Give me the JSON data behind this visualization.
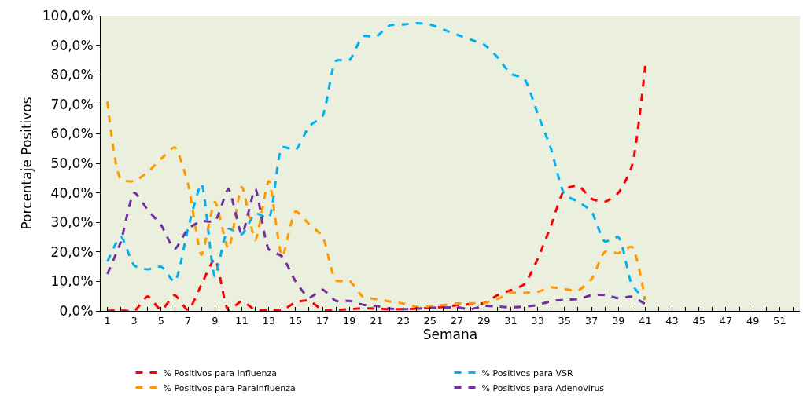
{
  "chart_data": {
    "type": "line",
    "xlabel": "Semana",
    "ylabel": "Porcentaje Positivos",
    "line_style": "dashed",
    "marker": "none",
    "grid": false,
    "legend": "bottom",
    "x": [
      1,
      2,
      3,
      4,
      5,
      6,
      7,
      8,
      9,
      10,
      11,
      12,
      13,
      14,
      15,
      16,
      17,
      18,
      19,
      20,
      21,
      22,
      23,
      24,
      25,
      26,
      27,
      28,
      29,
      30,
      31,
      32,
      33,
      34,
      35,
      36,
      37,
      38,
      39,
      40,
      41
    ],
    "xlim": [
      0.5,
      52.5
    ],
    "xticks": [
      1,
      {
        "value": 2,
        "label": null
      },
      3,
      {
        "value": 4,
        "label": null
      },
      5,
      {
        "value": 6,
        "label": null
      },
      7,
      {
        "value": 8,
        "label": null
      },
      9,
      {
        "value": 10,
        "label": null
      },
      11,
      {
        "value": 12,
        "label": null
      },
      13,
      {
        "value": 14,
        "label": null
      },
      15,
      {
        "value": 16,
        "label": null
      },
      17,
      {
        "value": 18,
        "label": null
      },
      19,
      {
        "value": 20,
        "label": null
      },
      21,
      {
        "value": 22,
        "label": null
      },
      23,
      {
        "value": 24,
        "label": null
      },
      25,
      {
        "value": 26,
        "label": null
      },
      27,
      {
        "value": 28,
        "label": null
      },
      29,
      {
        "value": 30,
        "label": null
      },
      31,
      {
        "value": 32,
        "label": null
      },
      33,
      {
        "value": 34,
        "label": null
      },
      35,
      {
        "value": 36,
        "label": null
      },
      37,
      {
        "value": 38,
        "label": null
      },
      39,
      {
        "value": 40,
        "label": null
      },
      41,
      {
        "value": 42,
        "label": null
      },
      43,
      {
        "value": 44,
        "label": null
      },
      45,
      {
        "value": 46,
        "label": null
      },
      47,
      {
        "value": 48,
        "label": null
      },
      49,
      {
        "value": 50,
        "label": null
      },
      51,
      {
        "value": 52,
        "label": null
      }
    ],
    "ylim": [
      0,
      100
    ],
    "yticks": [
      {
        "value": 0,
        "label": "0,0%"
      },
      {
        "value": 10,
        "label": "10,0%"
      },
      {
        "value": 20,
        "label": "20,0%"
      },
      {
        "value": 30,
        "label": "30,0%"
      },
      {
        "value": 40,
        "label": "40,0%"
      },
      {
        "value": 50,
        "label": "50,0%"
      },
      {
        "value": 60,
        "label": "60,0%"
      },
      {
        "value": 70,
        "label": "70,0%"
      },
      {
        "value": 80,
        "label": "80,0%"
      },
      {
        "value": 90,
        "label": "90,0%"
      },
      {
        "value": 100,
        "label": "100,0%"
      }
    ],
    "series": [
      {
        "name": "% Positivos para Influenza",
        "color": "#ff0000",
        "values": [
          0,
          0.2,
          0,
          4.9,
          0.3,
          5.3,
          0.3,
          9,
          17.6,
          0.3,
          3.3,
          0.3,
          0.3,
          0.3,
          2.9,
          3.5,
          0.3,
          0.3,
          0.6,
          0.9,
          0.8,
          0.6,
          0.6,
          0.8,
          1,
          1.4,
          1.9,
          2.3,
          2.6,
          5.3,
          7,
          9,
          17.6,
          29,
          41,
          42.5,
          38,
          37,
          40,
          49,
          83
        ]
      },
      {
        "name": "% Positivos para VSR",
        "color": "#00b0f0",
        "values": [
          16.7,
          25.1,
          15.4,
          14.1,
          15,
          9.9,
          28,
          43,
          11.6,
          27.8,
          26,
          33,
          31.6,
          55.4,
          54.6,
          62.5,
          66,
          84.7,
          85,
          93,
          93,
          96.7,
          97,
          97.5,
          97,
          95.3,
          93.6,
          91.9,
          90.3,
          86,
          80.4,
          78.6,
          66.8,
          54.8,
          39.5,
          37,
          33.7,
          23.5,
          25,
          9,
          3.8
        ]
      },
      {
        "name": "% Positivos para Parainfluenza",
        "color": "#ff9900",
        "values": [
          71,
          44.6,
          44,
          47,
          51.5,
          55.4,
          43,
          19,
          37,
          21,
          42,
          24,
          44,
          18.4,
          33.7,
          29.4,
          25.2,
          10.3,
          10.2,
          4.8,
          4,
          3.2,
          2.5,
          1.4,
          1.6,
          2,
          2.5,
          2.6,
          2.6,
          4,
          6.1,
          6.1,
          6.5,
          8,
          7.4,
          7,
          10.7,
          20,
          19.6,
          21.7,
          3.8
        ]
      },
      {
        "name": "% Positivos para Adenovirus",
        "color": "#7030a0",
        "values": [
          12.5,
          23.5,
          40,
          34.2,
          29,
          21,
          27.8,
          30.4,
          30.4,
          41.3,
          26,
          41.3,
          20.9,
          18.4,
          10,
          4.5,
          7.2,
          3.4,
          3.4,
          2.1,
          1.7,
          0.8,
          0.6,
          0.8,
          1,
          1.2,
          1.2,
          0.6,
          1.7,
          1.5,
          1.2,
          1.5,
          2,
          3.3,
          3.8,
          4,
          5.3,
          5.4,
          4.3,
          4.8,
          2.3
        ]
      }
    ]
  }
}
